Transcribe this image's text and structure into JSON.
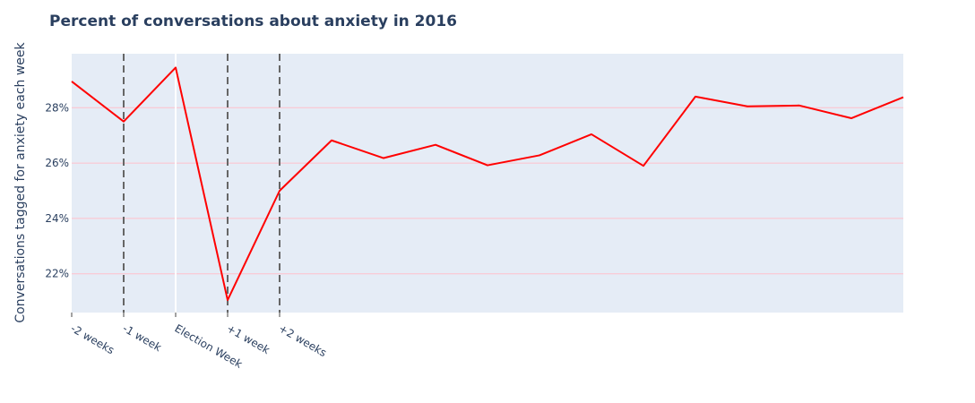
{
  "chart_data": {
    "type": "line",
    "title": "Percent of conversations about anxiety in 2016",
    "xlabel": "",
    "ylabel": "Conversations tagged for anxiety each week",
    "x": [
      -2,
      -1,
      0,
      1,
      2,
      3,
      4,
      5,
      6,
      7,
      8,
      9,
      10,
      11,
      12,
      13,
      14
    ],
    "x_tick_values": [
      -2,
      -1,
      0,
      1,
      2
    ],
    "x_tick_labels": [
      "-2 weeks",
      "-1 week",
      "Election Week",
      "+1 week",
      "+2 weeks"
    ],
    "series": [
      {
        "values": [
          28.95,
          27.5,
          29.45,
          21.05,
          25.0,
          26.82,
          26.18,
          26.66,
          25.92,
          26.28,
          27.04,
          25.9,
          28.4,
          28.05,
          28.08,
          27.62,
          28.38
        ],
        "color": "#ff0000"
      }
    ],
    "ylim": [
      20.6,
      29.95
    ],
    "xlim": [
      -2,
      14
    ],
    "y_tick_values": [
      22,
      24,
      26,
      28
    ],
    "y_tick_labels": [
      "22%",
      "24%",
      "26%",
      "28%"
    ],
    "vertical_lines": [
      {
        "x": -1,
        "style": "dashed",
        "color": "#666666"
      },
      {
        "x": 0,
        "style": "solid",
        "color": "#ffffff"
      },
      {
        "x": 1,
        "style": "dashed",
        "color": "#666666"
      },
      {
        "x": 2,
        "style": "dashed",
        "color": "#666666"
      }
    ],
    "grid": true,
    "grid_color": "#ffc0cb",
    "plot_background": "#e5ecf6",
    "legend": false
  }
}
